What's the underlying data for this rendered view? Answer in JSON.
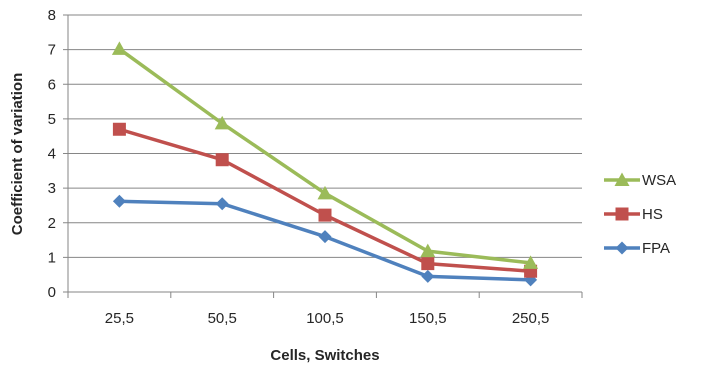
{
  "chart_data": {
    "type": "line",
    "title": "",
    "xlabel": "Cells, Switches",
    "ylabel": "Coefficient of variation",
    "categories": [
      "25,5",
      "50,5",
      "100,5",
      "150,5",
      "250,5"
    ],
    "ylim": [
      0,
      8
    ],
    "yticks": [
      0,
      1,
      2,
      3,
      4,
      5,
      6,
      7,
      8
    ],
    "grid": true,
    "legend_position": "right",
    "series": [
      {
        "name": "WSA",
        "color": "#9BBB59",
        "marker": "triangle",
        "values": [
          7.02,
          4.87,
          2.85,
          1.18,
          0.84
        ]
      },
      {
        "name": "HS",
        "color": "#C0504D",
        "marker": "square",
        "values": [
          4.7,
          3.82,
          2.22,
          0.82,
          0.6
        ]
      },
      {
        "name": "FPA",
        "color": "#4F81BD",
        "marker": "diamond",
        "values": [
          2.62,
          2.55,
          1.6,
          0.45,
          0.35
        ]
      }
    ]
  }
}
